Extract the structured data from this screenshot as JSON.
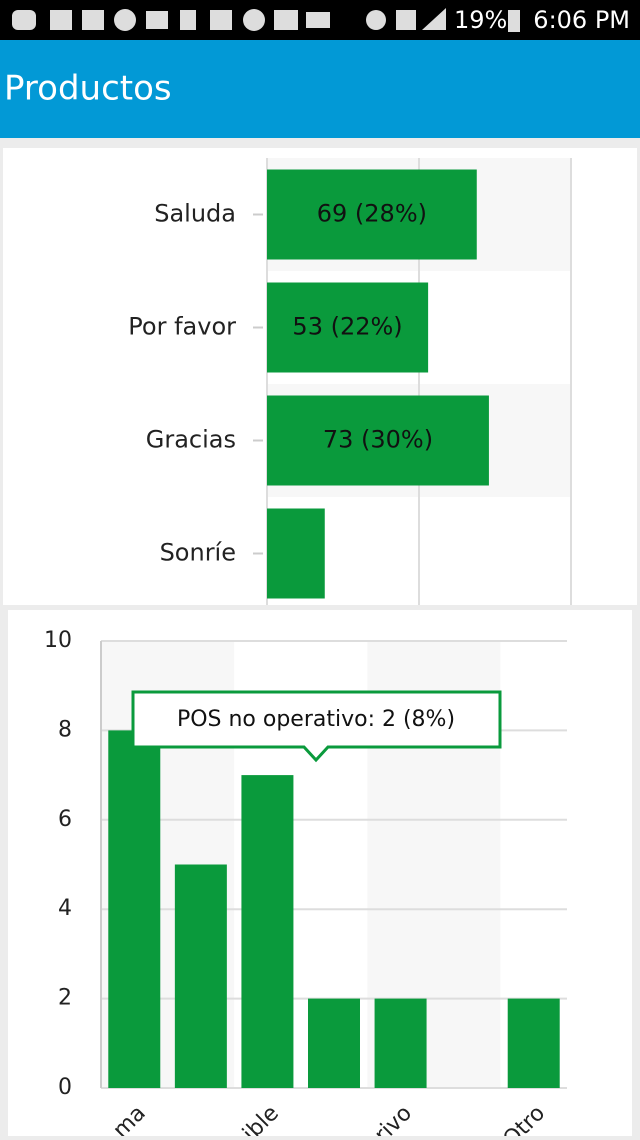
{
  "status_bar": {
    "battery": "19%",
    "time": "6:06 PM"
  },
  "app_bar": {
    "title": "Productos"
  },
  "chart_data": [
    {
      "type": "barh",
      "categories": [
        "Saluda",
        "Por favor",
        "Gracias",
        "Sonríe"
      ],
      "values": [
        69,
        53,
        73,
        19
      ],
      "value_labels": [
        "69 (28%)",
        "53 (22%)",
        "73 (30%)",
        null
      ],
      "color": "#0a9a3c",
      "xlim": [
        0,
        100
      ],
      "xticks": [
        0,
        50,
        100
      ],
      "grid": true
    },
    {
      "type": "bar",
      "categories": [
        "ma",
        null,
        "ible",
        null,
        "rivo",
        null,
        "Otro"
      ],
      "values": [
        8,
        5,
        7,
        2,
        2,
        0,
        2
      ],
      "color": "#0a9a3c",
      "ylim": [
        0,
        10
      ],
      "yticks": [
        0,
        2,
        4,
        6,
        8,
        10
      ],
      "grid": true,
      "annotation": "POS no operativo: 2 (8%)"
    }
  ]
}
